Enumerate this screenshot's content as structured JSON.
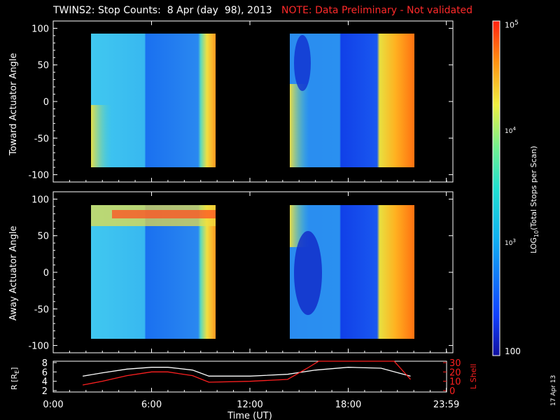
{
  "title": {
    "main": "TWINS2: Stop Counts:  8 Apr (day  98), 2013",
    "note": "NOTE: Data Preliminary - Not validated",
    "note_color": "#ff2a2a"
  },
  "stamp": "17 Apr 13",
  "chart_data": [
    {
      "type": "heatmap",
      "panel": "toward",
      "ylabel": "Toward Actuator Angle",
      "ylim": [
        -110,
        110
      ],
      "yticks": [
        "100",
        "50",
        "0",
        "-50",
        "-100"
      ],
      "ytick_values": [
        100,
        50,
        0,
        -50,
        -100
      ],
      "x_data_ranges_hours": [
        [
          1.8,
          9.5
        ],
        [
          14.3,
          21.8
        ]
      ],
      "y_data_range": [
        -90,
        90
      ],
      "description_values": "log10 stop counts color-coded"
    },
    {
      "type": "heatmap",
      "panel": "away",
      "ylabel": "Away Actuator Angle",
      "ylim": [
        -110,
        110
      ],
      "yticks": [
        "100",
        "50",
        "0",
        "-50",
        "-100"
      ],
      "ytick_values": [
        100,
        50,
        0,
        -50,
        -100
      ],
      "x_data_ranges_hours": [
        [
          1.8,
          9.5
        ],
        [
          14.3,
          21.8
        ]
      ],
      "y_data_range": [
        -90,
        90
      ]
    },
    {
      "type": "line",
      "panel": "ephemeris",
      "ylabel_left": "R [R",
      "ylabel_left_sub": "E",
      "ylabel_left_close": "]",
      "ylabel_right": "L Shell",
      "ylim_left": [
        2,
        8
      ],
      "yticks_left": [
        "8",
        "6",
        "4",
        "2"
      ],
      "ylim_right": [
        0,
        30
      ],
      "yticks_right": [
        "30",
        "20",
        "10",
        "0"
      ],
      "series": [
        {
          "name": "R",
          "color": "#ffffff",
          "x": [
            1.8,
            3,
            4.5,
            6,
            7,
            8.5,
            9.5,
            12,
            14.3,
            16,
            18,
            20,
            21.8
          ],
          "y": [
            5.1,
            5.8,
            6.6,
            7.0,
            7.0,
            6.4,
            5.1,
            5.1,
            5.5,
            6.4,
            7.0,
            6.8,
            5.1
          ]
        },
        {
          "name": "L",
          "color": "#ff2020",
          "x": [
            1.8,
            3,
            4.5,
            6,
            7,
            8.5,
            9.5,
            12,
            14.3,
            15.5,
            16.2,
            20.8,
            21.8
          ],
          "y": [
            6,
            10,
            16,
            20,
            20,
            16,
            9,
            10,
            12,
            24,
            34,
            34,
            12
          ]
        }
      ],
      "xlabel": "Time (UT)",
      "xticks": [
        "0:00",
        "6:00",
        "12:00",
        "18:00",
        "23:59"
      ],
      "xtick_values": [
        0,
        6,
        12,
        18,
        23.983
      ]
    }
  ],
  "colorbar": {
    "label": "LOG",
    "label_sub": "10",
    "label_rest": "(Total Stops per Scan)",
    "top": "10",
    "top_sup": "5",
    "mid4": "10",
    "mid4_sup": "4",
    "mid3": "10",
    "mid3_sup": "3",
    "bottom": "100"
  }
}
